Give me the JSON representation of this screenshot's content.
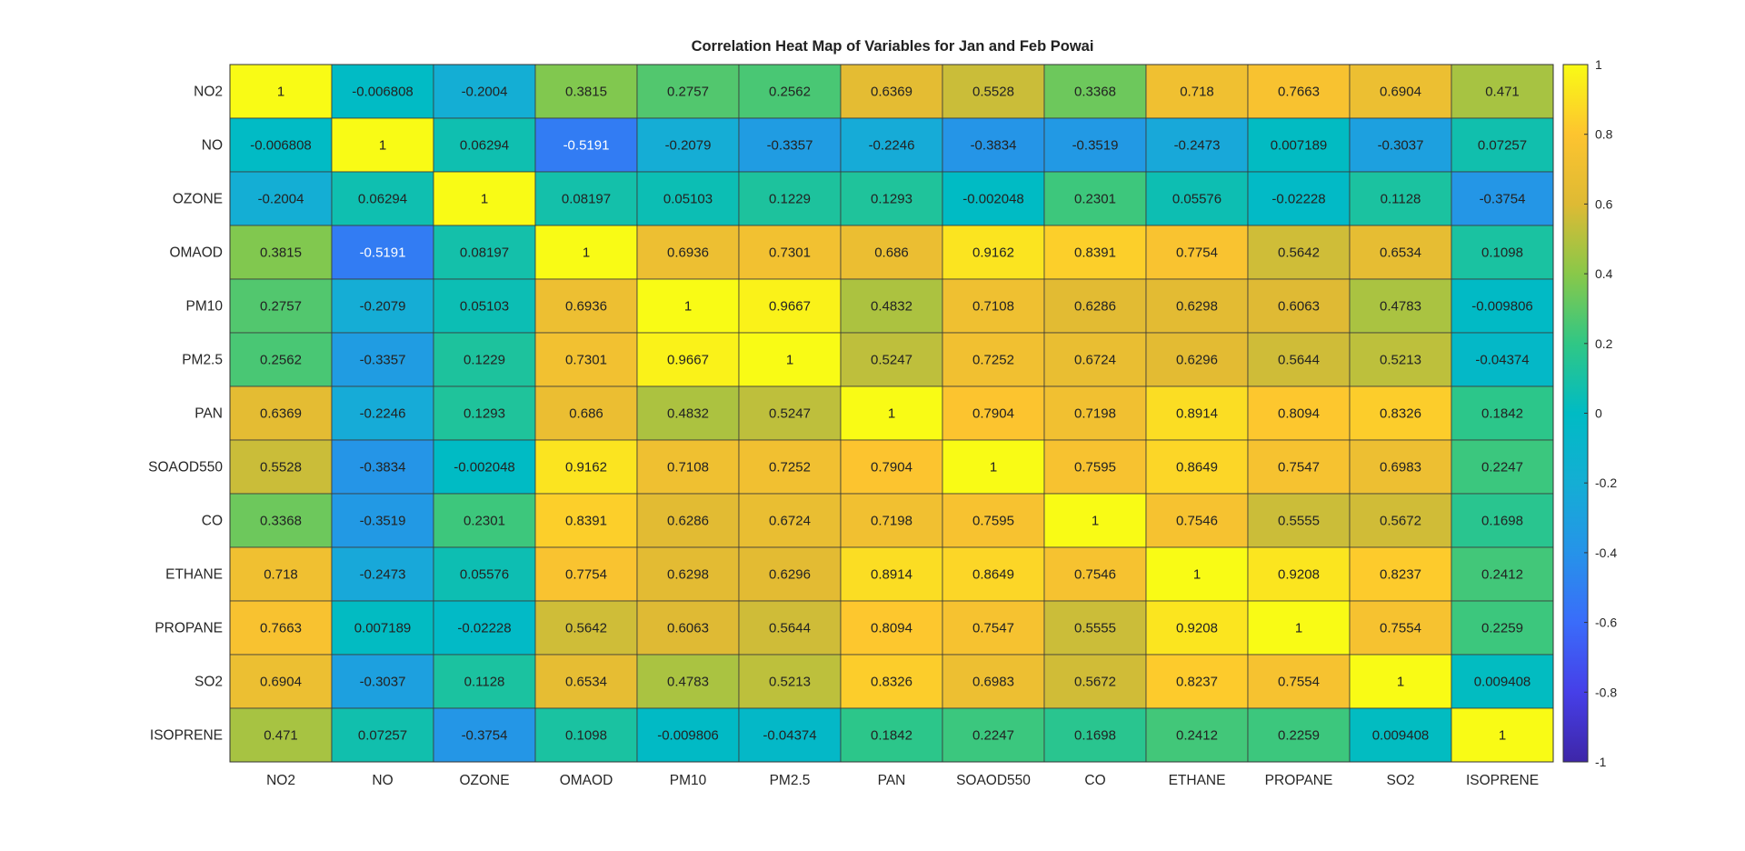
{
  "chart_data": {
    "type": "heatmap",
    "title": "Correlation Heat Map of Variables for Jan and Feb Powai",
    "x_labels": [
      "NO2",
      "NO",
      "OZONE",
      "OMAOD",
      "PM10",
      "PM2.5",
      "PAN",
      "SOAOD550",
      "CO",
      "ETHANE",
      "PROPANE",
      "SO2",
      "ISOPRENE"
    ],
    "y_labels": [
      "NO2",
      "NO",
      "OZONE",
      "OMAOD",
      "PM10",
      "PM2.5",
      "PAN",
      "SOAOD550",
      "CO",
      "ETHANE",
      "PROPANE",
      "SO2",
      "ISOPRENE"
    ],
    "values": [
      [
        1,
        -0.006808,
        -0.2004,
        0.3815,
        0.2757,
        0.2562,
        0.6369,
        0.5528,
        0.3368,
        0.718,
        0.7663,
        0.6904,
        0.471
      ],
      [
        -0.006808,
        1,
        0.06294,
        -0.5191,
        -0.2079,
        -0.3357,
        -0.2246,
        -0.3834,
        -0.3519,
        -0.2473,
        0.007189,
        -0.3037,
        0.07257
      ],
      [
        -0.2004,
        0.06294,
        1,
        0.08197,
        0.05103,
        0.1229,
        0.1293,
        -0.002048,
        0.2301,
        0.05576,
        -0.02228,
        0.1128,
        -0.3754
      ],
      [
        0.3815,
        -0.5191,
        0.08197,
        1,
        0.6936,
        0.7301,
        0.686,
        0.9162,
        0.8391,
        0.7754,
        0.5642,
        0.6534,
        0.1098
      ],
      [
        0.2757,
        -0.2079,
        0.05103,
        0.6936,
        1,
        0.9667,
        0.4832,
        0.7108,
        0.6286,
        0.6298,
        0.6063,
        0.4783,
        -0.009806
      ],
      [
        0.2562,
        -0.3357,
        0.1229,
        0.7301,
        0.9667,
        1,
        0.5247,
        0.7252,
        0.6724,
        0.6296,
        0.5644,
        0.5213,
        -0.04374
      ],
      [
        0.6369,
        -0.2246,
        0.1293,
        0.686,
        0.4832,
        0.5247,
        1,
        0.7904,
        0.7198,
        0.8914,
        0.8094,
        0.8326,
        0.1842
      ],
      [
        0.5528,
        -0.3834,
        -0.002048,
        0.9162,
        0.7108,
        0.7252,
        0.7904,
        1,
        0.7595,
        0.8649,
        0.7547,
        0.6983,
        0.2247
      ],
      [
        0.3368,
        -0.3519,
        0.2301,
        0.8391,
        0.6286,
        0.6724,
        0.7198,
        0.7595,
        1,
        0.7546,
        0.5555,
        0.5672,
        0.1698
      ],
      [
        0.718,
        -0.2473,
        0.05576,
        0.7754,
        0.6298,
        0.6296,
        0.8914,
        0.8649,
        0.7546,
        1,
        0.9208,
        0.8237,
        0.2412
      ],
      [
        0.7663,
        0.007189,
        -0.02228,
        0.5642,
        0.6063,
        0.5644,
        0.8094,
        0.7547,
        0.5555,
        0.9208,
        1,
        0.7554,
        0.2259
      ],
      [
        0.6904,
        -0.3037,
        0.1128,
        0.6534,
        0.4783,
        0.5213,
        0.8326,
        0.6983,
        0.5672,
        0.8237,
        0.7554,
        1,
        0.009408
      ],
      [
        0.471,
        0.07257,
        -0.3754,
        0.1098,
        -0.009806,
        -0.04374,
        0.1842,
        0.2247,
        0.1698,
        0.2412,
        0.2259,
        0.009408,
        1
      ]
    ],
    "colorbar": {
      "range": [
        -1,
        1
      ],
      "ticks": [
        "1",
        "0.8",
        "0.6",
        "0.4",
        "0.2",
        "0",
        "-0.2",
        "-0.4",
        "-0.6",
        "-0.8",
        "-1"
      ],
      "colormap": "parula",
      "placement": "right"
    }
  }
}
